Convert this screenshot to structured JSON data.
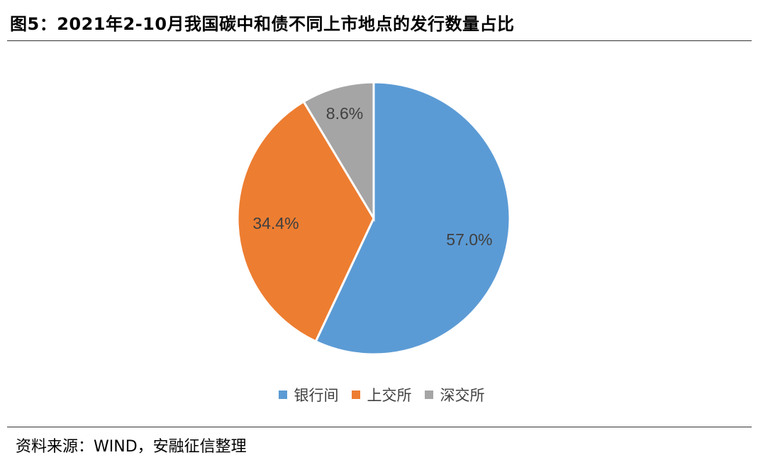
{
  "header": {
    "title": "图5：2021年2-10月我国碳中和债不同上市地点的发行数量占比"
  },
  "footer": {
    "source": "资料来源：WIND，安融征信整理"
  },
  "chart_data": {
    "type": "pie",
    "title": "",
    "legend_position": "bottom",
    "slices": [
      {
        "label": "银行间",
        "value": 57.0,
        "display": "57.0%",
        "color": "#5B9BD5"
      },
      {
        "label": "上交所",
        "value": 34.4,
        "display": "34.4%",
        "color": "#ED7D31"
      },
      {
        "label": "深交所",
        "value": 8.6,
        "display": "8.6%",
        "color": "#A5A5A5"
      }
    ]
  }
}
